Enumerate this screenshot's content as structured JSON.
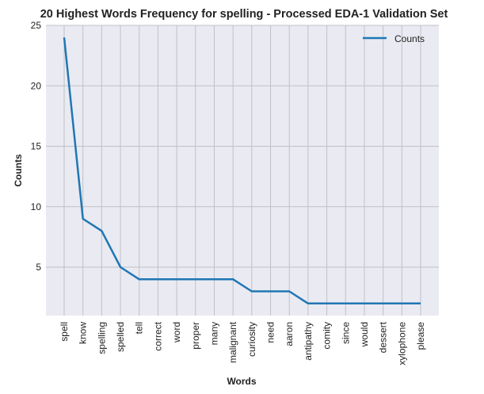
{
  "chart_data": {
    "type": "line",
    "title": "20 Highest Words Frequency for spelling - Processed EDA-1 Validation Set",
    "xlabel": "Words",
    "ylabel": "Counts",
    "categories": [
      "spell",
      "know",
      "spelling",
      "spelled",
      "tell",
      "correct",
      "word",
      "proper",
      "many",
      "malignant",
      "curiosity",
      "need",
      "aaron",
      "antipathy",
      "comity",
      "since",
      "would",
      "dessert",
      "xylophone",
      "please"
    ],
    "series": [
      {
        "name": "Counts",
        "values": [
          24,
          9,
          8,
          5,
          4,
          4,
          4,
          4,
          4,
          4,
          3,
          3,
          3,
          2,
          2,
          2,
          2,
          2,
          2,
          2
        ]
      }
    ],
    "ylim": [
      1.0,
      25.0
    ],
    "yticks": [
      5,
      10,
      15,
      20,
      25
    ],
    "grid": true,
    "legend_position": "top-right",
    "colors": {
      "line": "#1f77b4",
      "plot_background": "#eaeaf2",
      "grid": "#c0c0c6"
    }
  }
}
